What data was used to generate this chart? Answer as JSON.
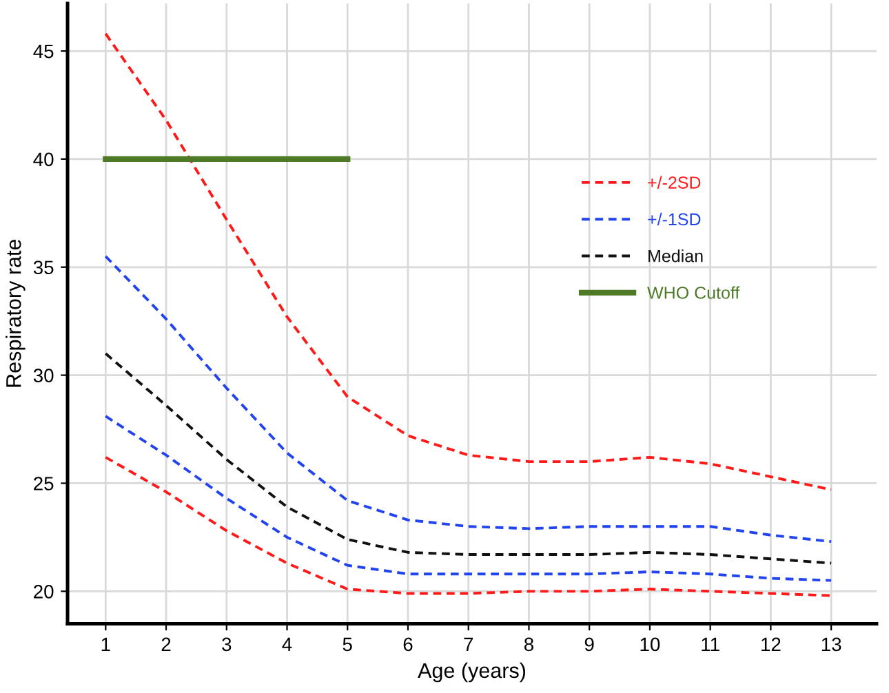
{
  "chart_data": {
    "type": "line",
    "xlabel": "Age (years)",
    "ylabel": "Respiratory rate",
    "x": [
      1,
      2,
      3,
      4,
      5,
      6,
      7,
      8,
      9,
      10,
      11,
      12,
      13
    ],
    "series": [
      {
        "name": "+/-2SD",
        "color": "#ff1a1a",
        "line_style": "dashed",
        "values": [
          45.8,
          41.8,
          37.2,
          32.7,
          29.0,
          27.2,
          26.3,
          26.0,
          26.0,
          26.2,
          25.9,
          25.3,
          24.7
        ]
      },
      {
        "name": "+/-1SD",
        "color": "#2244ee",
        "line_style": "dashed",
        "values": [
          35.5,
          32.6,
          29.4,
          26.4,
          24.2,
          23.3,
          23.0,
          22.9,
          23.0,
          23.0,
          23.0,
          22.6,
          22.3
        ]
      },
      {
        "name": "Median",
        "color": "#111111",
        "line_style": "dashed",
        "values": [
          31.0,
          28.6,
          26.1,
          23.9,
          22.4,
          21.8,
          21.7,
          21.7,
          21.7,
          21.8,
          21.7,
          21.5,
          21.3
        ]
      },
      {
        "name": "WHO Cutoff",
        "color": "#4e7a27",
        "line_style": "solid",
        "x": [
          1,
          5
        ],
        "values": [
          40,
          40
        ]
      },
      {
        "color": "#2244ee",
        "line_style": "dashed",
        "values": [
          28.1,
          26.3,
          24.3,
          22.5,
          21.2,
          20.8,
          20.8,
          20.8,
          20.8,
          20.9,
          20.8,
          20.6,
          20.5
        ]
      },
      {
        "color": "#ff1a1a",
        "line_style": "dashed",
        "values": [
          26.2,
          24.6,
          22.8,
          21.3,
          20.1,
          19.9,
          19.9,
          20.0,
          20.0,
          20.1,
          20.0,
          19.9,
          19.8
        ]
      }
    ],
    "xlim": [
      0.37,
      13.75
    ],
    "xticks": [
      1,
      2,
      3,
      4,
      5,
      6,
      7,
      8,
      9,
      10,
      11,
      12,
      13
    ],
    "ylim": [
      18.5,
      47.2
    ],
    "yticks": [
      20,
      25,
      30,
      35,
      40,
      45
    ],
    "grid": true,
    "legend": "center right"
  }
}
